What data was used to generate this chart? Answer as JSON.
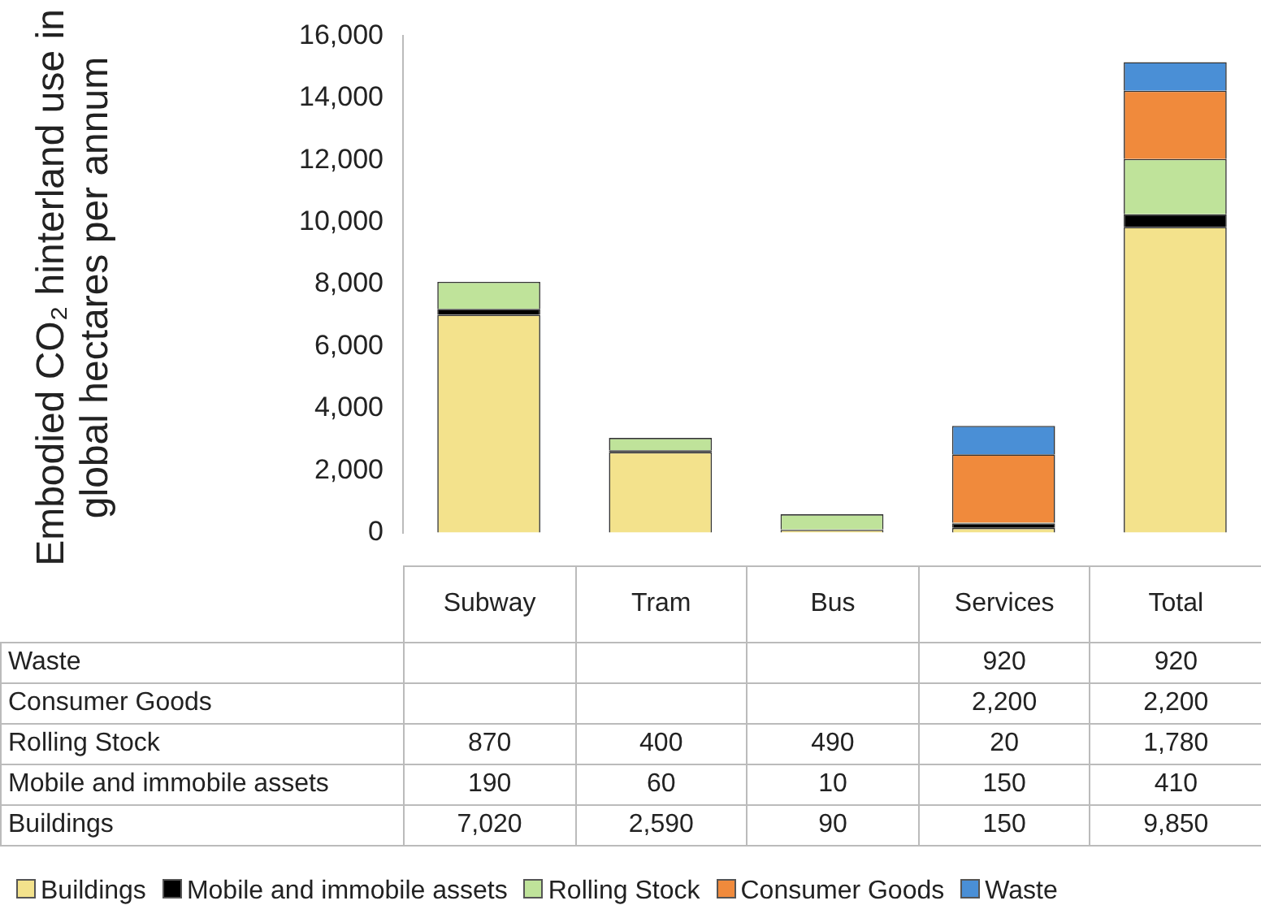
{
  "chart_data": {
    "type": "bar",
    "stacked": true,
    "ylabel": "Embodied CO₂ hinterland use in global hectares per annum",
    "categories": [
      "Subway",
      "Tram",
      "Bus",
      "Services",
      "Total"
    ],
    "series": [
      {
        "name": "Buildings",
        "color": "#f3e28c",
        "values": [
          7020,
          2590,
          90,
          150,
          9850
        ],
        "value_labels": [
          "7,020",
          "2,590",
          "90",
          "150",
          "9,850"
        ]
      },
      {
        "name": "Mobile and immobile assets",
        "color": "#000000",
        "values": [
          190,
          60,
          10,
          150,
          410
        ],
        "value_labels": [
          "190",
          "60",
          "10",
          "150",
          "410"
        ]
      },
      {
        "name": "Rolling Stock",
        "color": "#bfe39a",
        "values": [
          870,
          400,
          490,
          20,
          1780
        ],
        "value_labels": [
          "870",
          "400",
          "490",
          "20",
          "1,780"
        ]
      },
      {
        "name": "Consumer Goods",
        "color": "#f08a3c",
        "values": [
          null,
          null,
          null,
          2200,
          2200
        ],
        "value_labels": [
          null,
          null,
          null,
          "2,200",
          "2,200"
        ]
      },
      {
        "name": "Waste",
        "color": "#4a8fd6",
        "values": [
          null,
          null,
          null,
          920,
          920
        ],
        "value_labels": [
          null,
          null,
          null,
          "920",
          "920"
        ]
      }
    ],
    "ylim": [
      0,
      16000
    ],
    "yticks": [
      0,
      {
        "value": 2000,
        "label": "2,000"
      },
      {
        "value": 4000,
        "label": "4,000"
      },
      {
        "value": 6000,
        "label": "6,000"
      },
      {
        "value": 8000,
        "label": "8,000"
      },
      {
        "value": 10000,
        "label": "10,000"
      },
      {
        "value": 12000,
        "label": "12,000"
      },
      {
        "value": 14000,
        "label": "14,000"
      },
      {
        "value": 16000,
        "label": "16,000"
      }
    ],
    "legend": "bottom"
  }
}
